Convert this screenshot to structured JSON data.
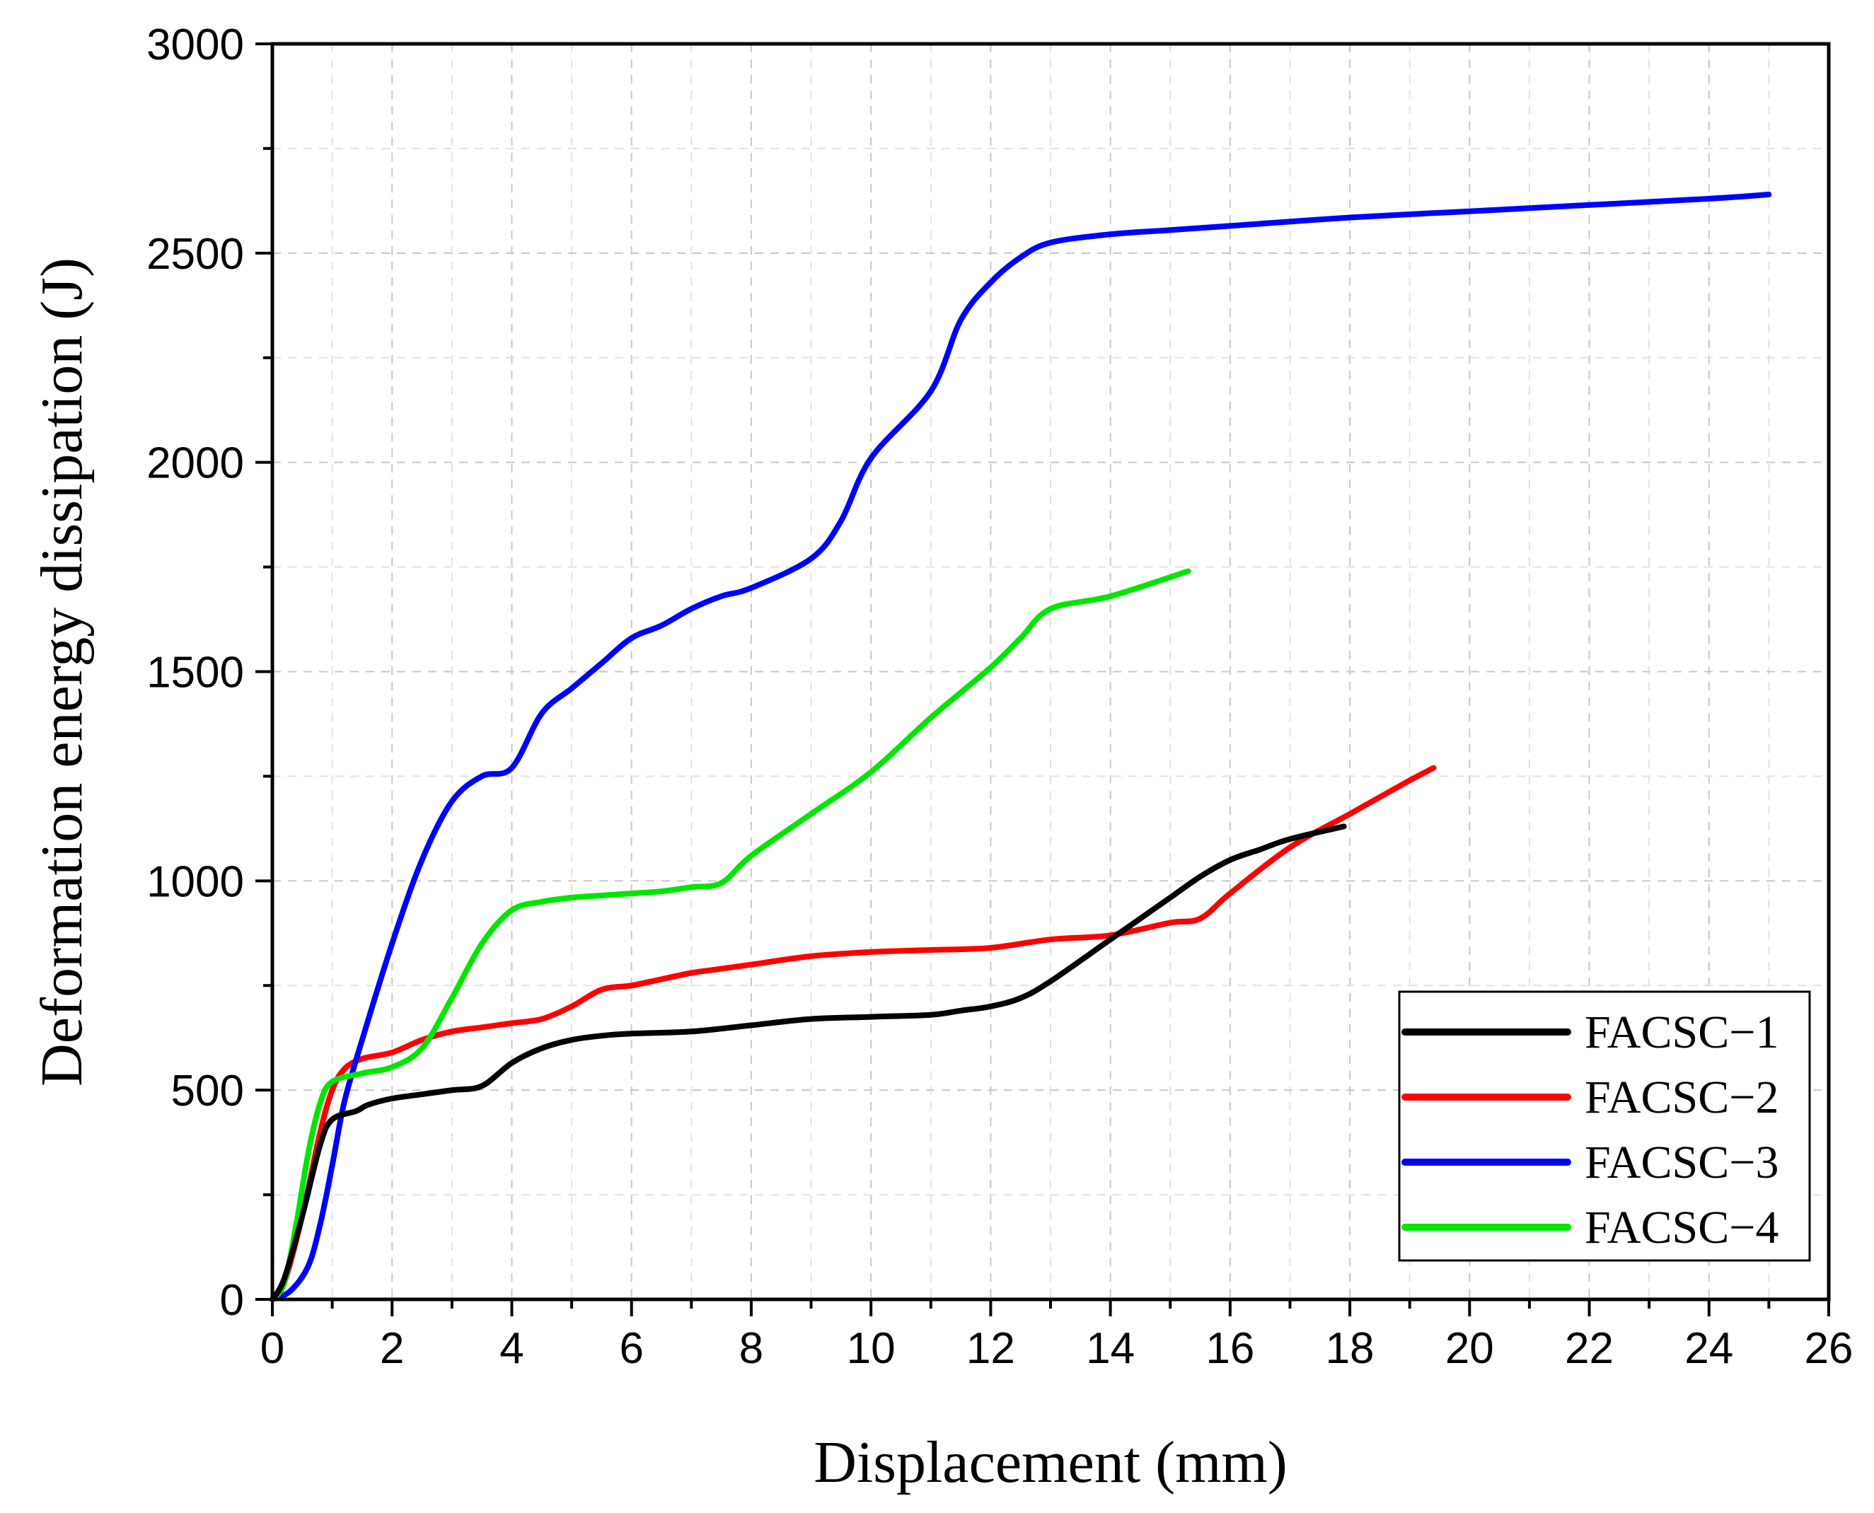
{
  "chart_data": {
    "type": "line",
    "title": "",
    "xlabel": "Displacement (mm)",
    "ylabel": "Deformation energy dissipation (J)",
    "xlim": [
      0,
      26
    ],
    "ylim": [
      0,
      3000
    ],
    "grid": true,
    "legend_position": "bottom-right",
    "xticks": [
      "0",
      "2",
      "4",
      "6",
      "8",
      "10",
      "12",
      "14",
      "16",
      "18",
      "20",
      "22",
      "24",
      "26"
    ],
    "yticks": [
      "0",
      "500",
      "1000",
      "1500",
      "2000",
      "2500",
      "3000"
    ],
    "series": [
      {
        "name": "FACSC−1",
        "color": "#000000",
        "x": [
          0,
          0.2,
          0.5,
          0.8,
          1.0,
          1.4,
          1.6,
          2.0,
          2.5,
          3.0,
          3.5,
          4.0,
          4.5,
          5.0,
          5.5,
          6.0,
          7.0,
          8.0,
          9.0,
          10.0,
          11.0,
          11.5,
          12.0,
          12.5,
          13.0,
          14.0,
          15.0,
          15.5,
          16.0,
          16.5,
          17.0,
          17.9
        ],
        "y": [
          0,
          50,
          200,
          370,
          430,
          450,
          465,
          480,
          490,
          500,
          510,
          565,
          600,
          620,
          630,
          635,
          640,
          655,
          670,
          675,
          680,
          690,
          700,
          720,
          760,
          860,
          960,
          1010,
          1050,
          1075,
          1100,
          1130
        ]
      },
      {
        "name": "FACSC−2",
        "color": "#ff0000",
        "x": [
          0,
          0.2,
          0.5,
          0.8,
          1.0,
          1.2,
          1.5,
          2.0,
          2.5,
          3.0,
          3.5,
          4.0,
          4.5,
          5.0,
          5.5,
          6.0,
          6.5,
          7.0,
          7.5,
          8.0,
          9.0,
          10.0,
          11.0,
          12.0,
          13.0,
          14.0,
          15.0,
          15.5,
          16.0,
          17.0,
          18.0,
          19.0,
          19.4
        ],
        "y": [
          0,
          40,
          200,
          400,
          500,
          550,
          575,
          590,
          620,
          640,
          650,
          660,
          670,
          700,
          740,
          750,
          765,
          780,
          790,
          800,
          820,
          830,
          835,
          840,
          860,
          870,
          900,
          910,
          970,
          1080,
          1160,
          1240,
          1270
        ]
      },
      {
        "name": "FACSC−3",
        "color": "#0000ff",
        "x": [
          0,
          0.3,
          0.6,
          0.8,
          1.0,
          1.2,
          1.5,
          2.0,
          2.5,
          3.0,
          3.5,
          4.0,
          4.5,
          5.0,
          5.5,
          6.0,
          6.5,
          7.0,
          7.5,
          8.0,
          9.0,
          9.5,
          10.0,
          11.0,
          11.5,
          12.0,
          12.5,
          13.0,
          14.0,
          15.0,
          16.0,
          18.0,
          20.0,
          22.0,
          24.0,
          25.0
        ],
        "y": [
          0,
          20,
          80,
          180,
          320,
          470,
          620,
          850,
          1050,
          1190,
          1250,
          1270,
          1400,
          1460,
          1520,
          1580,
          1610,
          1650,
          1680,
          1700,
          1770,
          1860,
          2010,
          2170,
          2340,
          2430,
          2490,
          2525,
          2545,
          2555,
          2565,
          2585,
          2600,
          2615,
          2630,
          2640
        ]
      },
      {
        "name": "FACSC−4",
        "color": "#00e600",
        "x": [
          0,
          0.2,
          0.4,
          0.6,
          0.8,
          1.0,
          1.5,
          2.0,
          2.5,
          3.0,
          3.5,
          4.0,
          4.5,
          5.0,
          5.5,
          6.0,
          6.5,
          7.0,
          7.5,
          8.0,
          9.0,
          10.0,
          11.0,
          12.0,
          12.5,
          13.0,
          14.0,
          15.3
        ],
        "y": [
          0,
          40,
          180,
          350,
          470,
          520,
          540,
          555,
          600,
          720,
          850,
          930,
          950,
          960,
          965,
          970,
          975,
          985,
          995,
          1060,
          1160,
          1260,
          1390,
          1510,
          1580,
          1650,
          1680,
          1740
        ]
      }
    ]
  }
}
